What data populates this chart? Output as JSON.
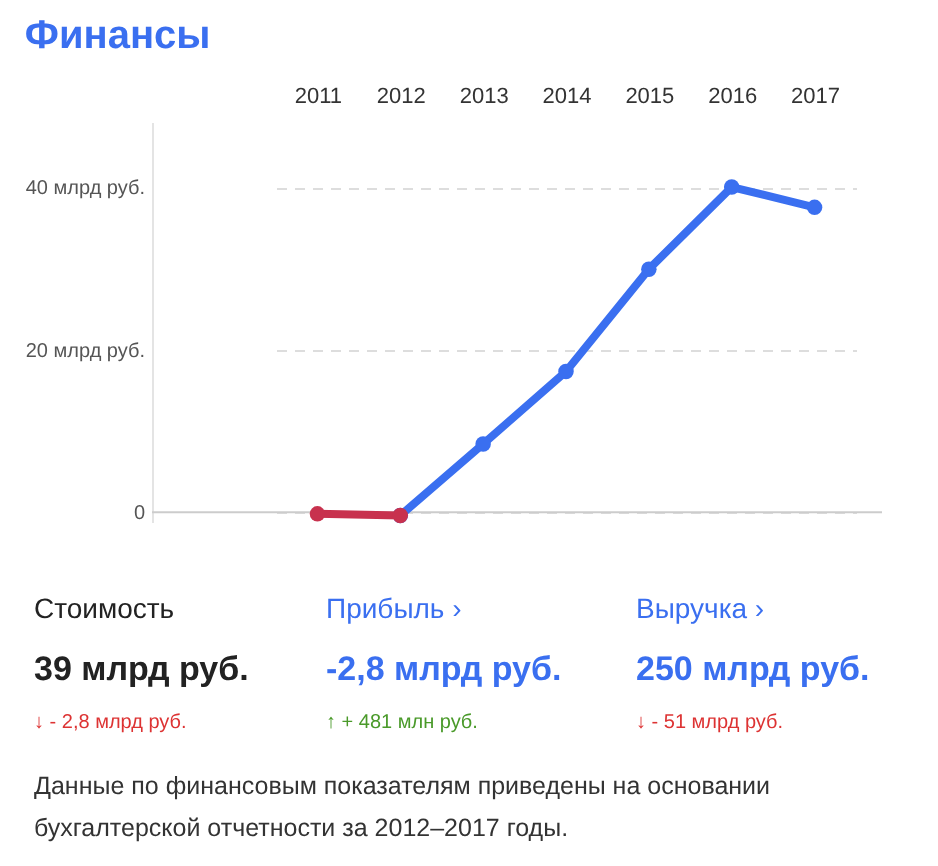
{
  "chart_data": [
    {
      "type": "line",
      "title": "Финансы",
      "categories": [
        "2011",
        "2012",
        "2013",
        "2014",
        "2015",
        "2016",
        "2017"
      ],
      "series": [
        {
          "color": "#c8324e",
          "values": [
            -0.2,
            -0.4,
            null,
            null,
            null,
            null,
            null
          ]
        },
        {
          "color": "#3a6ff0",
          "values": [
            null,
            -0.4,
            8.4,
            17.3,
            29.9,
            40,
            37.5
          ]
        }
      ],
      "ylim": [
        -1.2,
        48
      ],
      "yticks": [
        0,
        {
          "value": 20,
          "label": "20 млрд руб."
        },
        {
          "value": 40,
          "label": "40 млрд руб."
        }
      ],
      "grid": "y",
      "marker": "circle",
      "line_style": "solid",
      "ref_lines": [
        {
          "axis": "y",
          "value": 0,
          "color": "#cccccc"
        }
      ]
    },
    {
      "type": "other",
      "annotations": [
        "Стоимость",
        "Прибыль ›",
        "Выручка ›",
        "39 млрд руб.",
        "-2,8 млрд руб.",
        "250 млрд руб.",
        "↓ - 2,8 млрд руб.",
        "↑ + 481 млн руб.",
        "↓ - 51 млрд руб.",
        "Данные по финансовым показателям приведены на основании бухгалтерской отчетности за 2012–2017 годы."
      ]
    }
  ]
}
